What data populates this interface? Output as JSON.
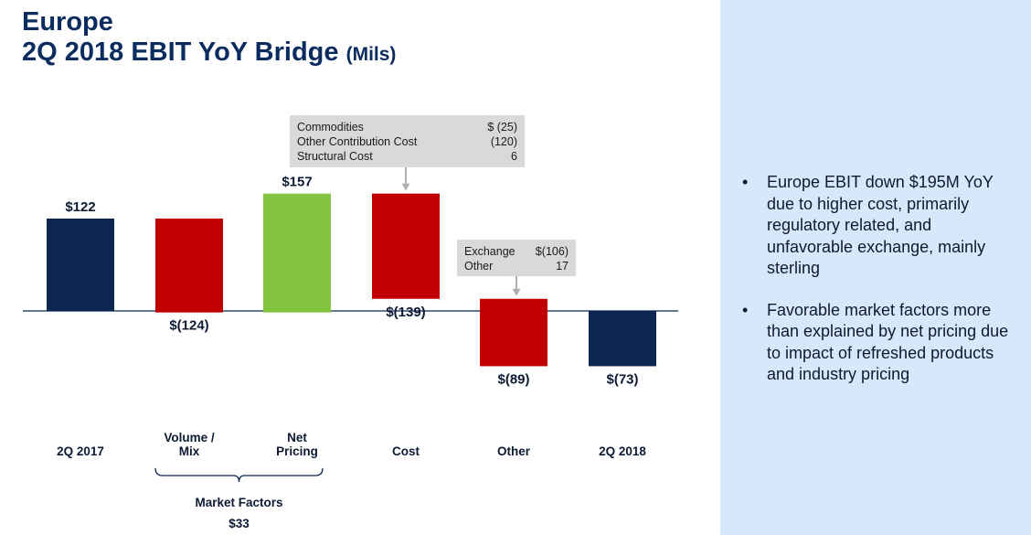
{
  "title": {
    "line1": "Europe",
    "line2": "2Q 2018 EBIT YoY Bridge",
    "units": "(Mils)"
  },
  "chart_data": {
    "type": "waterfall",
    "unit": "Mils",
    "steps": [
      {
        "name": "2Q 2017",
        "label_lines": [
          "2Q 2017"
        ],
        "value": 122,
        "kind": "total",
        "display": "$122"
      },
      {
        "name": "Volume / Mix",
        "label_lines": [
          "Volume /",
          "Mix"
        ],
        "value": -124,
        "kind": "decrease",
        "display": "$(124)"
      },
      {
        "name": "Net Pricing",
        "label_lines": [
          "Net",
          "Pricing"
        ],
        "value": 157,
        "kind": "increase",
        "display": "$157"
      },
      {
        "name": "Cost",
        "label_lines": [
          "Cost"
        ],
        "value": -139,
        "kind": "decrease",
        "display": "$(139)"
      },
      {
        "name": "Other",
        "label_lines": [
          "Other"
        ],
        "value": -89,
        "kind": "decrease",
        "display": "$(89)"
      },
      {
        "name": "2Q 2018",
        "label_lines": [
          "2Q 2018"
        ],
        "value": -73,
        "kind": "total",
        "display": "$(73)"
      }
    ],
    "callouts": [
      {
        "target": "Cost",
        "rows": [
          {
            "label": "Commodities",
            "value": "$  (25)"
          },
          {
            "label": "Other Contribution Cost",
            "value": "(120)"
          },
          {
            "label": "Structural Cost",
            "value": "6"
          }
        ]
      },
      {
        "target": "Other",
        "rows": [
          {
            "label": "Exchange",
            "value": "$(106)"
          },
          {
            "label": "Other",
            "value": "17"
          }
        ]
      }
    ],
    "group": {
      "label": "Market Factors",
      "value": "$33",
      "spans": [
        "Volume / Mix",
        "Net Pricing"
      ]
    },
    "colors": {
      "total": "#0c2650",
      "decrease": "#c00000",
      "increase": "#82c341",
      "baseline": "#0c2650",
      "callout_bg": "#d9d9d9",
      "arrow": "#b0b0b0"
    }
  },
  "bullets": [
    "Europe EBIT down $195M YoY due to higher cost, primarily regulatory related, and unfavorable exchange, mainly sterling",
    "Favorable market factors more than explained by net pricing due to impact of refreshed products and industry pricing"
  ],
  "bullet_char": "•"
}
